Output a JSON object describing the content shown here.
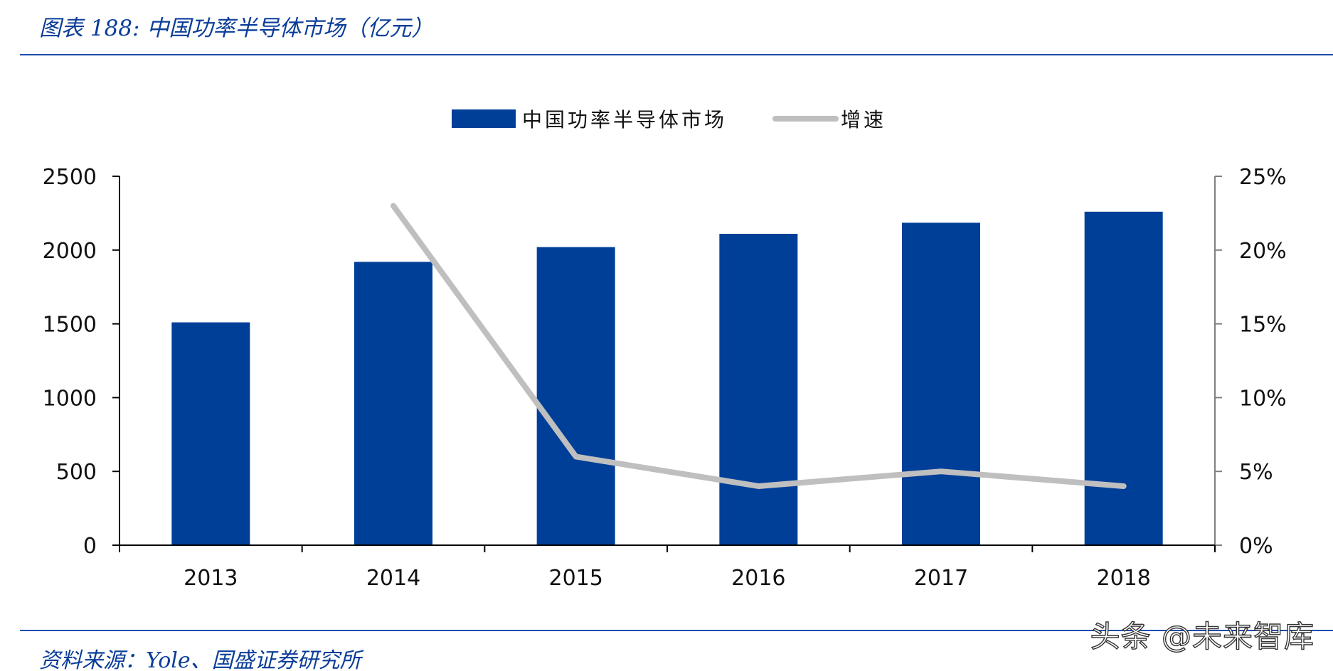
{
  "header": {
    "title": "图表 188:  中国功率半导体市场（亿元）"
  },
  "footer": {
    "source": "资料来源：Yole、国盛证券研究所",
    "watermark": "头条 @未来智库"
  },
  "colors": {
    "bar": "#003f98",
    "line": "#bfbfbf",
    "title": "#0a3d99",
    "rule": "#1e4fb0"
  },
  "chart_data": {
    "type": "bar",
    "categories": [
      "2013",
      "2014",
      "2015",
      "2016",
      "2017",
      "2018"
    ],
    "series": [
      {
        "name": "中国功率半导体市场",
        "type": "bar",
        "axis": "left",
        "values": [
          1510,
          1920,
          2020,
          2110,
          2185,
          2260
        ]
      },
      {
        "name": "增速",
        "type": "line",
        "axis": "right",
        "values": [
          null,
          23,
          6,
          4,
          5,
          4
        ]
      }
    ],
    "ylim": [
      0,
      2500
    ],
    "yticks": [
      0,
      500,
      1000,
      1500,
      2000,
      2500
    ],
    "y2lim": [
      0,
      25
    ],
    "y2ticks": [
      0,
      5,
      10,
      15,
      20,
      25
    ],
    "y2tick_labels": [
      "0%",
      "5%",
      "10%",
      "15%",
      "20%",
      "25%"
    ],
    "legend_position": "top-center",
    "grid": false
  }
}
